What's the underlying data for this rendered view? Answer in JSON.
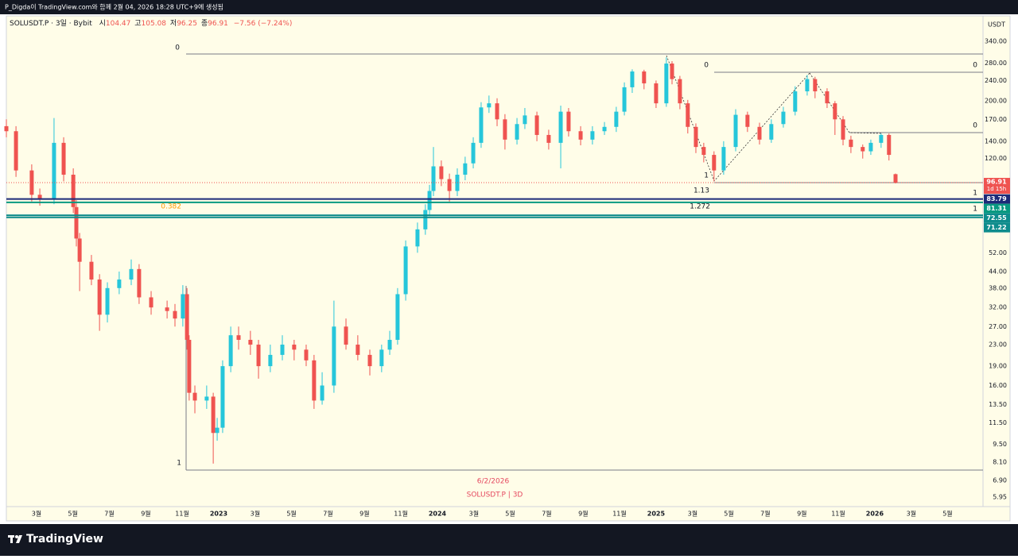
{
  "header": "P_Digda이 TradingView.com와 함께 2월 04, 2026 18:28 UTC+9에 생성됨",
  "brand": "TradingView",
  "chart_data": {
    "type": "candlestick",
    "symbol": "SOLUSDT.P · 3일 · Bybit",
    "ohlc_prefixes": [
      "시",
      "고",
      "저",
      "종"
    ],
    "change": "−7.56 (−7.24%)",
    "currency": "USDT",
    "countdown": "1d 15h",
    "log_scale": true,
    "grid": false,
    "up_color": "#26c6da",
    "down_color": "#ef5350",
    "xlim": [
      2022.029,
      2026.495
    ],
    "ylim": [
      5.46,
      426
    ],
    "x": [
      2022.029,
      2022.073,
      2022.145,
      2022.182,
      2022.247,
      2022.291,
      2022.335,
      2022.349,
      2022.364,
      2022.418,
      2022.455,
      2022.491,
      2022.545,
      2022.6,
      2022.636,
      2022.691,
      2022.764,
      2022.8,
      2022.836,
      2022.855,
      2022.865,
      2022.891,
      2022.945,
      2022.975,
      2022.993,
      2023.018,
      2023.055,
      2023.091,
      2023.145,
      2023.182,
      2023.236,
      2023.291,
      2023.345,
      2023.4,
      2023.436,
      2023.473,
      2023.527,
      2023.582,
      2023.636,
      2023.691,
      2023.745,
      2023.782,
      2023.818,
      2023.855,
      2023.909,
      2023.945,
      2023.964,
      2023.982,
      2024.018,
      2024.055,
      2024.091,
      2024.127,
      2024.164,
      2024.2,
      2024.236,
      2024.273,
      2024.309,
      2024.364,
      2024.4,
      2024.455,
      2024.509,
      2024.564,
      2024.6,
      2024.655,
      2024.709,
      2024.764,
      2024.818,
      2024.855,
      2024.891,
      2024.945,
      2025.0,
      2025.047,
      2025.073,
      2025.109,
      2025.145,
      2025.182,
      2025.218,
      2025.265,
      2025.309,
      2025.364,
      2025.418,
      2025.473,
      2025.527,
      2025.582,
      2025.636,
      2025.691,
      2025.727,
      2025.782,
      2025.818,
      2025.855,
      2025.891,
      2025.945,
      2025.982,
      2026.029,
      2026.065,
      2026.095
    ],
    "open": [
      160,
      153,
      108,
      87,
      84,
      138,
      104,
      78,
      59,
      48,
      41,
      30,
      38,
      41,
      45,
      35,
      32,
      31,
      29,
      36,
      24,
      15,
      14,
      14.5,
      10.5,
      11,
      19,
      25,
      24,
      23,
      19,
      21,
      23,
      22,
      20,
      14,
      16,
      27,
      23,
      21,
      19,
      22,
      24,
      36,
      55,
      64,
      76,
      90,
      112,
      100,
      90,
      104,
      115,
      138,
      189,
      196,
      170,
      142,
      163,
      176,
      148,
      138,
      182,
      153,
      142,
      153,
      159,
      182,
      226,
      260,
      234,
      196,
      279,
      243,
      196,
      159,
      133,
      124,
      108,
      133,
      177,
      159,
      142,
      163,
      182,
      218,
      243,
      218,
      196,
      170,
      142,
      133,
      128,
      138,
      148,
      104.47
    ],
    "high": [
      170,
      160,
      114,
      92,
      172,
      145,
      110,
      83,
      62,
      51,
      43,
      40,
      44,
      49,
      47,
      37,
      34,
      33,
      39,
      38,
      25,
      16,
      16,
      15,
      12,
      20,
      27,
      27,
      26,
      24,
      23,
      25,
      24,
      23,
      21,
      18,
      34,
      29,
      25,
      22,
      23,
      26,
      38,
      58,
      68,
      80,
      95,
      133,
      118,
      105,
      110,
      122,
      145,
      198,
      210,
      205,
      178,
      172,
      188,
      182,
      155,
      192,
      188,
      160,
      160,
      166,
      190,
      236,
      265,
      264,
      240,
      295,
      285,
      250,
      202,
      164,
      138,
      128,
      140,
      186,
      182,
      165,
      170,
      190,
      228,
      252,
      248,
      224,
      200,
      175,
      147,
      136,
      142,
      150,
      150,
      105.08
    ],
    "low": [
      145,
      102,
      82,
      79,
      80,
      98,
      74,
      55,
      37,
      39,
      26,
      28,
      36,
      39,
      33,
      30,
      29,
      27,
      27,
      22,
      14,
      12.5,
      13,
      8,
      9.8,
      10.5,
      18,
      22,
      21,
      17,
      18,
      20,
      20,
      19,
      13,
      13.5,
      15,
      22,
      20,
      17.5,
      18,
      21,
      23,
      34,
      52,
      61,
      72,
      86,
      94,
      82,
      86,
      99,
      110,
      132,
      180,
      160,
      130,
      136,
      156,
      140,
      130,
      110,
      146,
      135,
      136,
      148,
      152,
      176,
      215,
      222,
      188,
      190,
      232,
      186,
      150,
      126,
      116,
      98,
      104,
      128,
      152,
      136,
      138,
      158,
      176,
      210,
      205,
      188,
      148,
      135,
      126,
      120,
      124,
      132,
      118,
      96.25
    ],
    "close": [
      153,
      108,
      87,
      84,
      138,
      104,
      78,
      59,
      48,
      41,
      30,
      38,
      41,
      45,
      35,
      32,
      31,
      29,
      36,
      24,
      15,
      14,
      14.5,
      10.5,
      11,
      19,
      25,
      24,
      23,
      19,
      21,
      23,
      22,
      20,
      14,
      16,
      27,
      23,
      21,
      19,
      22,
      24,
      36,
      55,
      64,
      76,
      90,
      112,
      100,
      90,
      104,
      115,
      138,
      189,
      196,
      170,
      142,
      163,
      176,
      148,
      138,
      182,
      153,
      142,
      153,
      159,
      182,
      226,
      260,
      234,
      196,
      279,
      243,
      196,
      159,
      133,
      124,
      108,
      133,
      177,
      159,
      142,
      163,
      182,
      218,
      243,
      218,
      196,
      170,
      142,
      133,
      128,
      138,
      148,
      124,
      96.91
    ],
    "price_levels": [
      {
        "value": 83.79,
        "color": "#1c2a78"
      },
      {
        "value": 81.31,
        "color": "#089981"
      },
      {
        "value": 72.55,
        "color": "#0e8c8c"
      },
      {
        "value": 71.22,
        "color": "#0e8c8c"
      }
    ],
    "yticks": [
      {
        "value": 340,
        "label": "340.00"
      },
      {
        "value": 280,
        "label": "280.00"
      },
      {
        "value": 240,
        "label": "240.00"
      },
      {
        "value": 200,
        "label": "200.00"
      },
      {
        "value": 170,
        "label": "170.00"
      },
      {
        "value": 140,
        "label": "140.00"
      },
      {
        "value": 120,
        "label": "120.00"
      },
      {
        "value": 52,
        "label": "52.00"
      },
      {
        "value": 44,
        "label": "44.00"
      },
      {
        "value": 38,
        "label": "38.00"
      },
      {
        "value": 32,
        "label": "32.00"
      },
      {
        "value": 27,
        "label": "27.00"
      },
      {
        "value": 23,
        "label": "23.00"
      },
      {
        "value": 19,
        "label": "19.00"
      },
      {
        "value": 16,
        "label": "16.00"
      },
      {
        "value": 13.5,
        "label": "13.50"
      },
      {
        "value": 11.5,
        "label": "11.50"
      },
      {
        "value": 9.5,
        "label": "9.50"
      },
      {
        "value": 8.1,
        "label": "8.10"
      },
      {
        "value": 6.9,
        "label": "6.90"
      },
      {
        "value": 5.95,
        "label": "5.95"
      }
    ],
    "xticks": [
      {
        "value": 2022.167,
        "label": "3월"
      },
      {
        "value": 2022.333,
        "label": "5월"
      },
      {
        "value": 2022.5,
        "label": "7월"
      },
      {
        "value": 2022.667,
        "label": "9월"
      },
      {
        "value": 2022.833,
        "label": "11월"
      },
      2023,
      {
        "value": 2023.167,
        "label": "3월"
      },
      {
        "value": 2023.333,
        "label": "5월"
      },
      {
        "value": 2023.5,
        "label": "7월"
      },
      {
        "value": 2023.667,
        "label": "9월"
      },
      {
        "value": 2023.833,
        "label": "11월"
      },
      2024,
      {
        "value": 2024.167,
        "label": "3월"
      },
      {
        "value": 2024.333,
        "label": "5월"
      },
      {
        "value": 2024.5,
        "label": "7월"
      },
      {
        "value": 2024.667,
        "label": "9월"
      },
      {
        "value": 2024.833,
        "label": "11월"
      },
      2025,
      {
        "value": 2025.167,
        "label": "3월"
      },
      {
        "value": 2025.333,
        "label": "5월"
      },
      {
        "value": 2025.5,
        "label": "7월"
      },
      {
        "value": 2025.667,
        "label": "9월"
      },
      {
        "value": 2025.833,
        "label": "11월"
      },
      2026,
      {
        "value": 2026.167,
        "label": "3월"
      },
      {
        "value": 2026.333,
        "label": "5월"
      }
    ],
    "annotations": [
      "0",
      "0.382",
      "1",
      "0",
      "1",
      "1.13",
      "1.272",
      "0",
      "0",
      "1",
      "1",
      "6/2/2026",
      "SOLUSDT.P | 3D"
    ]
  }
}
